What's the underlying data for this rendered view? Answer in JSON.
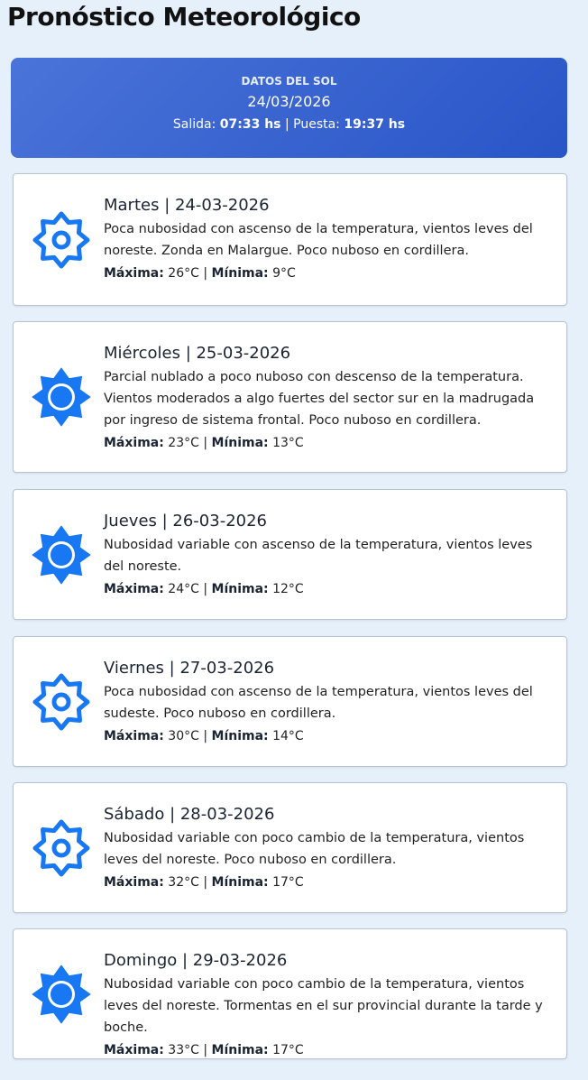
{
  "title": "Pronóstico Meteorológico",
  "sun": {
    "heading": "DATOS DEL SOL",
    "date": "24/03/2026",
    "sunrise_label": "Salida:",
    "sunrise": "07:33 hs",
    "separator": "|",
    "sunset_label": "Puesta:",
    "sunset": "19:37 hs"
  },
  "colors": {
    "accent": "#1877f2",
    "banner": "#3a63d0"
  },
  "labels": {
    "max": "Máxima:",
    "min": "Mínima:",
    "sep": "|"
  },
  "days": [
    {
      "title": "Martes | 24-03-2026",
      "icon": "sun-outline-icon",
      "desc": "Poca nubosidad con ascenso de la temperatura, vientos leves del noreste. Zonda en Malargue. Poco nuboso en cordillera.",
      "max": "26°C",
      "min": "9°C"
    },
    {
      "title": "Miércoles | 25-03-2026",
      "icon": "sun-filled-icon",
      "desc": "Parcial nublado a poco nuboso con descenso de la temperatura. Vientos moderados a algo fuertes del sector sur en la madrugada por ingreso de sistema frontal. Poco nuboso en cordillera.",
      "max": "23°C",
      "min": "13°C"
    },
    {
      "title": "Jueves | 26-03-2026",
      "icon": "sun-filled-icon",
      "desc": "Nubosidad variable con ascenso de la temperatura, vientos leves del noreste.",
      "max": "24°C",
      "min": "12°C"
    },
    {
      "title": "Viernes | 27-03-2026",
      "icon": "sun-outline-icon",
      "desc": "Poca nubosidad con ascenso de la temperatura, vientos leves del sudeste. Poco nuboso en cordillera.",
      "max": "30°C",
      "min": "14°C"
    },
    {
      "title": "Sábado | 28-03-2026",
      "icon": "sun-outline-icon",
      "desc": "Nubosidad variable con poco cambio de la temperatura, vientos leves del noreste. Poco nuboso en cordillera.",
      "max": "32°C",
      "min": "17°C"
    },
    {
      "title": "Domingo | 29-03-2026",
      "icon": "sun-filled-icon",
      "desc": "Nubosidad variable con poco cambio de la temperatura, vientos leves del noreste. Tormentas en el sur provincial durante la tarde y boche.",
      "max": "33°C",
      "min": "17°C"
    }
  ]
}
